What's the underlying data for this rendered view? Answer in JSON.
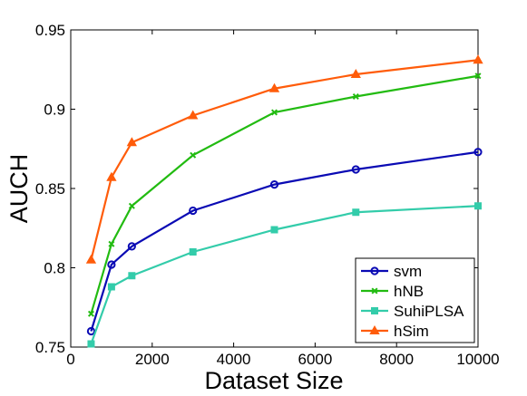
{
  "chart_data": {
    "type": "line",
    "title": "",
    "xlabel": "Dataset Size",
    "ylabel": "AUCH",
    "xlim": [
      0,
      10000
    ],
    "ylim": [
      0.75,
      0.95
    ],
    "xticks": [
      0,
      2000,
      4000,
      6000,
      8000,
      10000
    ],
    "xtick_labels": [
      "0",
      "2000",
      "4000",
      "6000",
      "8000",
      "10000"
    ],
    "yticks": [
      0.75,
      0.8,
      0.85,
      0.9,
      0.95
    ],
    "ytick_labels": [
      "0.75",
      "0.8",
      "0.85",
      "0.9",
      "0.95"
    ],
    "grid": false,
    "legend_position": "bottom-right",
    "x": [
      500,
      1000,
      1500,
      3000,
      5000,
      7000,
      10000
    ],
    "series": [
      {
        "name": "svm",
        "color": "#0a0ab4",
        "marker": "circle",
        "values": [
          0.76,
          0.802,
          0.8135,
          0.836,
          0.8525,
          0.862,
          0.873
        ]
      },
      {
        "name": "hNB",
        "color": "#22bb11",
        "marker": "x",
        "values": [
          0.771,
          0.815,
          0.839,
          0.871,
          0.898,
          0.908,
          0.921
        ]
      },
      {
        "name": "SuhiPLSA",
        "color": "#33ccaa",
        "marker": "square",
        "values": [
          0.752,
          0.788,
          0.795,
          0.81,
          0.824,
          0.835,
          0.839
        ]
      },
      {
        "name": "hSim",
        "color": "#ff5c0a",
        "marker": "triangle",
        "values": [
          0.805,
          0.857,
          0.879,
          0.896,
          0.913,
          0.922,
          0.931
        ]
      }
    ]
  }
}
